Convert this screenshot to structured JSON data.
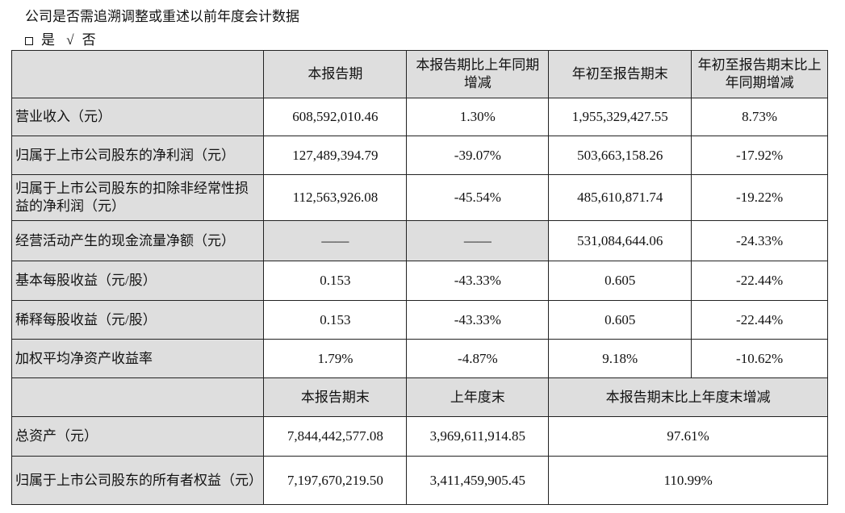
{
  "question": "公司是否需追溯调整或重述以前年度会计数据",
  "options": {
    "yes": "是",
    "check": "√",
    "no": "否"
  },
  "header1": [
    "",
    "本报告期",
    "本报告期比上年同期增减",
    "年初至报告期末",
    "年初至报告期末比上年同期增减"
  ],
  "rows1": [
    [
      "营业收入（元）",
      "608,592,010.46",
      "1.30%",
      "1,955,329,427.55",
      "8.73%"
    ],
    [
      "归属于上市公司股东的净利润（元）",
      "127,489,394.79",
      "-39.07%",
      "503,663,158.26",
      "-17.92%"
    ],
    [
      "归属于上市公司股东的扣除非经常性损益的净利润（元）",
      "112,563,926.08",
      "-45.54%",
      "485,610,871.74",
      "-19.22%"
    ],
    [
      "经营活动产生的现金流量净额（元）",
      "——",
      "——",
      "531,084,644.06",
      "-24.33%"
    ],
    [
      "基本每股收益（元/股）",
      "0.153",
      "-43.33%",
      "0.605",
      "-22.44%"
    ],
    [
      "稀释每股收益（元/股）",
      "0.153",
      "-43.33%",
      "0.605",
      "-22.44%"
    ],
    [
      "加权平均净资产收益率",
      "1.79%",
      "-4.87%",
      "9.18%",
      "-10.62%"
    ]
  ],
  "header2": [
    "",
    "本报告期末",
    "上年度末",
    "本报告期末比上年度末增减"
  ],
  "rows2": [
    [
      "总资产（元）",
      "7,844,442,577.08",
      "3,969,611,914.85",
      "97.61%"
    ],
    [
      "归属于上市公司股东的所有者权益（元）",
      "7,197,670,219.50",
      "3,411,459,905.45",
      "110.99%"
    ]
  ]
}
